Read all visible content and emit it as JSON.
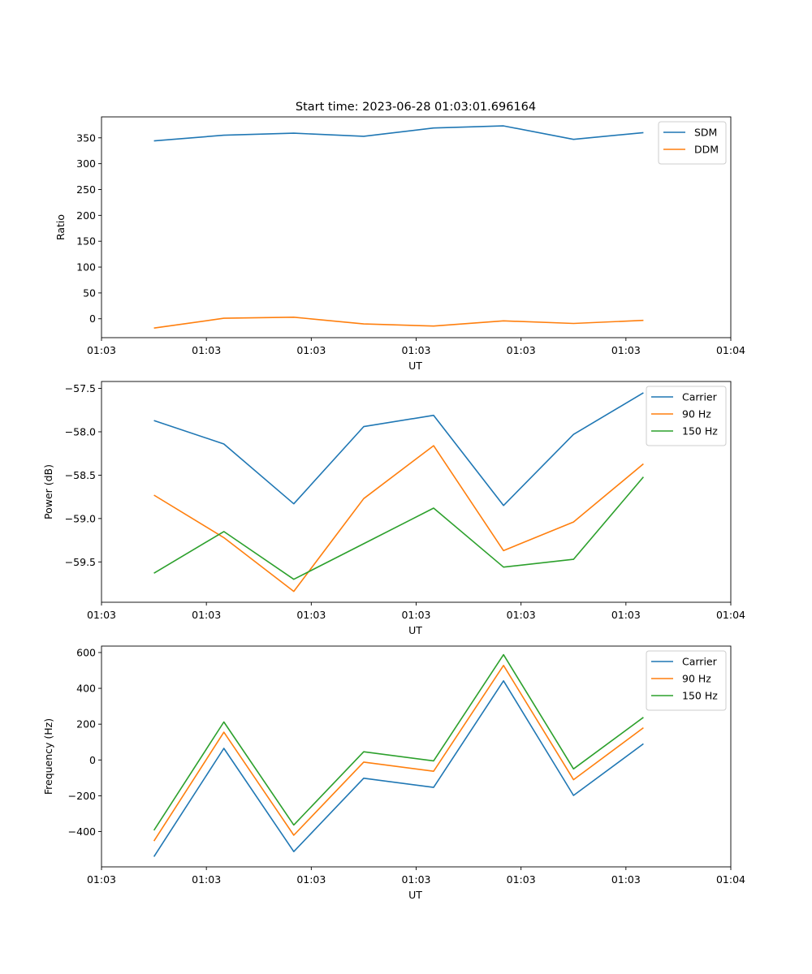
{
  "figure_title": "Start time: 2023-06-28 01:03:01.696164",
  "colors": {
    "blue": "#1f77b4",
    "orange": "#ff7f0e",
    "green": "#2ca02c"
  },
  "chart_data": [
    {
      "type": "line",
      "title": "Start time: 2023-06-28 01:03:01.696164",
      "xlabel": "UT",
      "ylabel": "Ratio",
      "x": [
        1,
        2,
        3,
        4,
        5,
        6,
        7,
        8
      ],
      "xlim": [
        0.25,
        9.25
      ],
      "xticks": [
        0.25,
        1.75,
        3.25,
        4.75,
        6.25,
        7.75,
        9.25
      ],
      "xtick_labels": [
        "01:03",
        "01:03",
        "01:03",
        "01:03",
        "01:03",
        "01:03",
        "01:04"
      ],
      "ylim": [
        -36.5,
        390.5
      ],
      "yticks": [
        0,
        50,
        100,
        150,
        200,
        250,
        300,
        350
      ],
      "ytick_labels": [
        "0",
        "50",
        "100",
        "150",
        "200",
        "250",
        "300",
        "350"
      ],
      "legend": "top-right",
      "series": [
        {
          "name": "SDM",
          "color": "#1f77b4",
          "values": [
            344,
            355,
            359,
            353,
            369,
            373,
            347,
            360
          ]
        },
        {
          "name": "DDM",
          "color": "#ff7f0e",
          "values": [
            -18,
            1,
            3,
            -10,
            -14,
            -4,
            -9,
            -3
          ]
        }
      ]
    },
    {
      "type": "line",
      "xlabel": "UT",
      "ylabel": "Power (dB)",
      "x": [
        1,
        2,
        3,
        4,
        5,
        6,
        7,
        8
      ],
      "xlim": [
        0.25,
        9.25
      ],
      "xticks": [
        0.25,
        1.75,
        3.25,
        4.75,
        6.25,
        7.75,
        9.25
      ],
      "xtick_labels": [
        "01:03",
        "01:03",
        "01:03",
        "01:03",
        "01:03",
        "01:03",
        "01:04"
      ],
      "ylim": [
        -59.965,
        -57.42
      ],
      "yticks": [
        -59.5,
        -59.0,
        -58.5,
        -58.0,
        -57.5
      ],
      "ytick_labels": [
        "−59.5",
        "−59.0",
        "−58.5",
        "−58.0",
        "−57.5"
      ],
      "legend": "top-right",
      "series": [
        {
          "name": "Carrier",
          "color": "#1f77b4",
          "values": [
            -57.87,
            -58.14,
            -58.83,
            -57.94,
            -57.81,
            -58.85,
            -58.03,
            -57.55
          ]
        },
        {
          "name": "90 Hz",
          "color": "#ff7f0e",
          "values": [
            -58.73,
            -59.22,
            -59.84,
            -58.77,
            -58.16,
            -59.37,
            -59.04,
            -58.37
          ]
        },
        {
          "name": "150 Hz",
          "color": "#2ca02c",
          "values": [
            -59.63,
            -59.15,
            -59.7,
            -59.29,
            -58.88,
            -59.56,
            -59.47,
            -58.52
          ]
        }
      ]
    },
    {
      "type": "line",
      "xlabel": "UT",
      "ylabel": "Frequency (Hz)",
      "x": [
        1,
        2,
        3,
        4,
        5,
        6,
        7,
        8
      ],
      "xlim": [
        0.25,
        9.25
      ],
      "xticks": [
        0.25,
        1.75,
        3.25,
        4.75,
        6.25,
        7.75,
        9.25
      ],
      "xtick_labels": [
        "01:03",
        "01:03",
        "01:03",
        "01:03",
        "01:03",
        "01:03",
        "01:04"
      ],
      "ylim": [
        -597,
        636
      ],
      "yticks": [
        -400,
        -200,
        0,
        200,
        400,
        600
      ],
      "ytick_labels": [
        "−400",
        "−200",
        "0",
        "200",
        "400",
        "600"
      ],
      "legend": "top-right",
      "series": [
        {
          "name": "Carrier",
          "color": "#1f77b4",
          "values": [
            -540,
            65,
            -512,
            -102,
            -153,
            442,
            -198,
            90
          ]
        },
        {
          "name": "90 Hz",
          "color": "#ff7f0e",
          "values": [
            -453,
            155,
            -420,
            -12,
            -63,
            528,
            -110,
            180
          ]
        },
        {
          "name": "150 Hz",
          "color": "#2ca02c",
          "values": [
            -393,
            212,
            -363,
            46,
            -5,
            588,
            -50,
            238
          ]
        }
      ]
    }
  ]
}
